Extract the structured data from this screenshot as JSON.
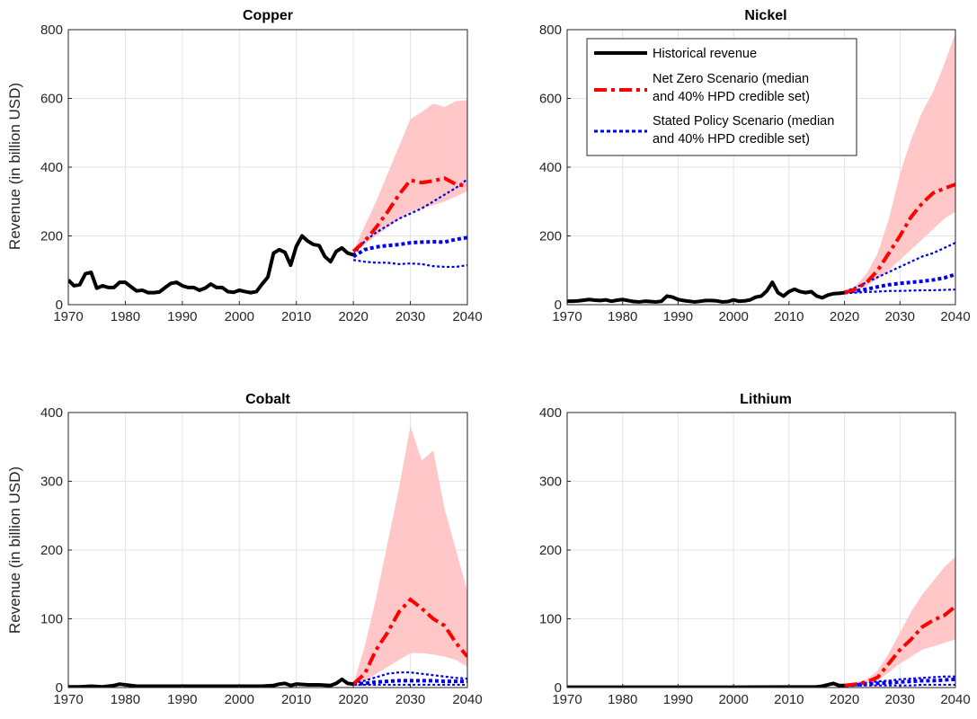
{
  "colors": {
    "historical": "#000000",
    "net_zero": "#ff0000",
    "net_zero_band": "#ffc7c7",
    "stated_policy": "#0000ee",
    "grid": "#e3e3e3",
    "axis": "#262626"
  },
  "legend": {
    "historical": "Historical revenue",
    "net_zero_line1": "Net Zero Scenario (median",
    "net_zero_line2": "and 40% HPD credible set)",
    "stated_line1": "Stated Policy Scenario (median",
    "stated_line2": "and 40% HPD credible set)"
  },
  "chart_data": [
    {
      "type": "line",
      "title": "Copper",
      "ylabel": "Revenue (in billion USD)",
      "xlabel": "",
      "xlim": [
        1970,
        2040
      ],
      "ylim": [
        0,
        800
      ],
      "xticks": [
        1970,
        1980,
        1990,
        2000,
        2010,
        2020,
        2030,
        2040
      ],
      "yticks": [
        0,
        200,
        400,
        600,
        800
      ],
      "grid": true,
      "legend": false,
      "historical": {
        "x": [
          1970,
          1971,
          1972,
          1973,
          1974,
          1975,
          1976,
          1977,
          1978,
          1979,
          1980,
          1981,
          1982,
          1983,
          1984,
          1985,
          1986,
          1987,
          1988,
          1989,
          1990,
          1991,
          1992,
          1993,
          1994,
          1995,
          1996,
          1997,
          1998,
          1999,
          2000,
          2001,
          2002,
          2003,
          2004,
          2005,
          2006,
          2007,
          2008,
          2009,
          2010,
          2011,
          2012,
          2013,
          2014,
          2015,
          2016,
          2017,
          2018,
          2019,
          2020
        ],
        "y": [
          72,
          55,
          58,
          90,
          94,
          48,
          55,
          50,
          50,
          65,
          65,
          52,
          40,
          42,
          35,
          35,
          37,
          50,
          62,
          65,
          55,
          50,
          50,
          42,
          48,
          60,
          50,
          50,
          38,
          36,
          42,
          38,
          35,
          38,
          60,
          80,
          150,
          160,
          152,
          115,
          170,
          200,
          185,
          175,
          172,
          140,
          125,
          155,
          165,
          150,
          145
        ]
      },
      "net_zero": {
        "x": [
          2020,
          2022,
          2024,
          2026,
          2028,
          2030,
          2032,
          2034,
          2036,
          2038,
          2040
        ],
        "median": [
          155,
          185,
          225,
          270,
          320,
          362,
          355,
          360,
          368,
          350,
          345
        ],
        "lower": [
          155,
          175,
          200,
          225,
          248,
          270,
          280,
          290,
          300,
          315,
          330
        ],
        "upper": [
          155,
          230,
          300,
          380,
          460,
          540,
          560,
          585,
          575,
          592,
          595
        ]
      },
      "stated_policy": {
        "x": [
          2020,
          2022,
          2024,
          2026,
          2028,
          2030,
          2032,
          2034,
          2036,
          2038,
          2040
        ],
        "median": [
          140,
          160,
          168,
          172,
          175,
          180,
          182,
          183,
          182,
          190,
          195
        ],
        "lower": [
          130,
          125,
          122,
          122,
          118,
          120,
          118,
          112,
          110,
          110,
          115
        ],
        "upper": [
          145,
          185,
          210,
          230,
          250,
          265,
          280,
          300,
          320,
          340,
          365
        ]
      }
    },
    {
      "type": "line",
      "title": "Nickel",
      "ylabel": "",
      "xlabel": "",
      "xlim": [
        1970,
        2040
      ],
      "ylim": [
        0,
        800
      ],
      "xticks": [
        1970,
        1980,
        1990,
        2000,
        2010,
        2020,
        2030,
        2040
      ],
      "yticks": [
        0,
        200,
        400,
        600,
        800
      ],
      "grid": true,
      "legend": "top-right",
      "historical": {
        "x": [
          1970,
          1971,
          1972,
          1973,
          1974,
          1975,
          1976,
          1977,
          1978,
          1979,
          1980,
          1981,
          1982,
          1983,
          1984,
          1985,
          1986,
          1987,
          1988,
          1989,
          1990,
          1991,
          1992,
          1993,
          1994,
          1995,
          1996,
          1997,
          1998,
          1999,
          2000,
          2001,
          2002,
          2003,
          2004,
          2005,
          2006,
          2007,
          2008,
          2009,
          2010,
          2011,
          2012,
          2013,
          2014,
          2015,
          2016,
          2017,
          2018,
          2019,
          2020
        ],
        "y": [
          10,
          10,
          11,
          13,
          15,
          13,
          12,
          14,
          10,
          13,
          15,
          12,
          9,
          8,
          10,
          9,
          8,
          10,
          25,
          22,
          15,
          12,
          10,
          8,
          10,
          12,
          12,
          11,
          8,
          9,
          14,
          10,
          11,
          14,
          22,
          25,
          40,
          65,
          35,
          25,
          38,
          45,
          38,
          35,
          38,
          25,
          20,
          28,
          32,
          33,
          35
        ]
      },
      "net_zero": {
        "x": [
          2020,
          2022,
          2024,
          2026,
          2028,
          2030,
          2032,
          2034,
          2036,
          2038,
          2040
        ],
        "median": [
          35,
          45,
          65,
          100,
          150,
          200,
          255,
          295,
          325,
          338,
          350
        ],
        "lower": [
          35,
          42,
          55,
          75,
          100,
          130,
          160,
          190,
          220,
          250,
          270
        ],
        "upper": [
          35,
          55,
          90,
          150,
          250,
          380,
          480,
          560,
          620,
          700,
          790
        ]
      },
      "stated_policy": {
        "x": [
          2020,
          2022,
          2024,
          2026,
          2028,
          2030,
          2032,
          2034,
          2036,
          2038,
          2040
        ],
        "median": [
          35,
          40,
          45,
          52,
          58,
          62,
          65,
          68,
          72,
          78,
          88
        ],
        "lower": [
          33,
          35,
          37,
          38,
          40,
          40,
          41,
          42,
          42,
          43,
          44
        ],
        "upper": [
          38,
          50,
          65,
          80,
          95,
          110,
          125,
          140,
          150,
          165,
          180
        ]
      }
    },
    {
      "type": "line",
      "title": "Cobalt",
      "ylabel": "Revenue (in billion USD)",
      "xlabel": "",
      "xlim": [
        1970,
        2040
      ],
      "ylim": [
        0,
        400
      ],
      "xticks": [
        1970,
        1980,
        1990,
        2000,
        2010,
        2020,
        2030,
        2040
      ],
      "yticks": [
        0,
        100,
        200,
        300,
        400
      ],
      "grid": true,
      "legend": false,
      "historical": {
        "x": [
          1970,
          1972,
          1974,
          1976,
          1978,
          1979,
          1980,
          1982,
          1984,
          1986,
          1988,
          1990,
          1992,
          1994,
          1996,
          1998,
          2000,
          2002,
          2004,
          2006,
          2007,
          2008,
          2009,
          2010,
          2012,
          2014,
          2016,
          2017,
          2018,
          2019,
          2020
        ],
        "y": [
          1,
          1,
          2,
          1,
          3,
          5,
          4,
          2,
          2,
          2,
          2,
          2,
          2,
          2,
          2,
          2,
          2,
          2,
          2,
          3,
          5,
          6,
          3,
          5,
          4,
          4,
          3,
          6,
          12,
          6,
          5
        ]
      },
      "net_zero": {
        "x": [
          2020,
          2022,
          2024,
          2026,
          2028,
          2030,
          2032,
          2034,
          2036,
          2038,
          2040
        ],
        "median": [
          5,
          20,
          55,
          80,
          110,
          128,
          115,
          100,
          90,
          65,
          45
        ],
        "lower": [
          5,
          10,
          20,
          30,
          40,
          50,
          50,
          48,
          45,
          40,
          30
        ],
        "upper": [
          5,
          60,
          130,
          210,
          290,
          380,
          330,
          345,
          260,
          200,
          140
        ]
      },
      "stated_policy": {
        "x": [
          2020,
          2022,
          2024,
          2026,
          2028,
          2030,
          2032,
          2034,
          2036,
          2038,
          2040
        ],
        "median": [
          5,
          6,
          8,
          9,
          10,
          10,
          10,
          10,
          9,
          9,
          9
        ],
        "lower": [
          4,
          4,
          4,
          4,
          4,
          4,
          4,
          4,
          4,
          4,
          4
        ],
        "upper": [
          6,
          10,
          15,
          20,
          22,
          22,
          20,
          18,
          16,
          14,
          13
        ]
      }
    },
    {
      "type": "line",
      "title": "Lithium",
      "ylabel": "",
      "xlabel": "",
      "xlim": [
        1970,
        2040
      ],
      "ylim": [
        0,
        400
      ],
      "xticks": [
        1970,
        1980,
        1990,
        2000,
        2010,
        2020,
        2030,
        2040
      ],
      "yticks": [
        0,
        100,
        200,
        300,
        400
      ],
      "grid": true,
      "legend": false,
      "historical": {
        "x": [
          1970,
          1975,
          1980,
          1985,
          1990,
          1995,
          2000,
          2005,
          2010,
          2015,
          2016,
          2017,
          2018,
          2019,
          2020
        ],
        "y": [
          0.5,
          0.5,
          0.5,
          0.5,
          0.5,
          0.5,
          0.5,
          0.7,
          0.8,
          1,
          2,
          4,
          6,
          3,
          3
        ]
      },
      "net_zero": {
        "x": [
          2020,
          2022,
          2024,
          2026,
          2028,
          2030,
          2032,
          2034,
          2036,
          2038,
          2040
        ],
        "median": [
          3,
          5,
          8,
          15,
          35,
          55,
          70,
          88,
          98,
          105,
          118
        ],
        "lower": [
          3,
          4,
          6,
          10,
          22,
          35,
          45,
          55,
          60,
          65,
          70
        ],
        "upper": [
          3,
          7,
          12,
          25,
          50,
          80,
          110,
          135,
          155,
          175,
          190
        ]
      },
      "stated_policy": {
        "x": [
          2020,
          2022,
          2024,
          2026,
          2028,
          2030,
          2032,
          2034,
          2036,
          2038,
          2040
        ],
        "median": [
          3,
          4,
          5,
          6,
          7,
          8,
          9,
          10,
          10,
          11,
          12
        ],
        "lower": [
          3,
          3,
          3,
          3,
          3,
          3,
          3,
          4,
          4,
          4,
          4
        ],
        "upper": [
          3,
          5,
          7,
          9,
          10,
          12,
          13,
          14,
          15,
          16,
          16
        ]
      }
    }
  ]
}
